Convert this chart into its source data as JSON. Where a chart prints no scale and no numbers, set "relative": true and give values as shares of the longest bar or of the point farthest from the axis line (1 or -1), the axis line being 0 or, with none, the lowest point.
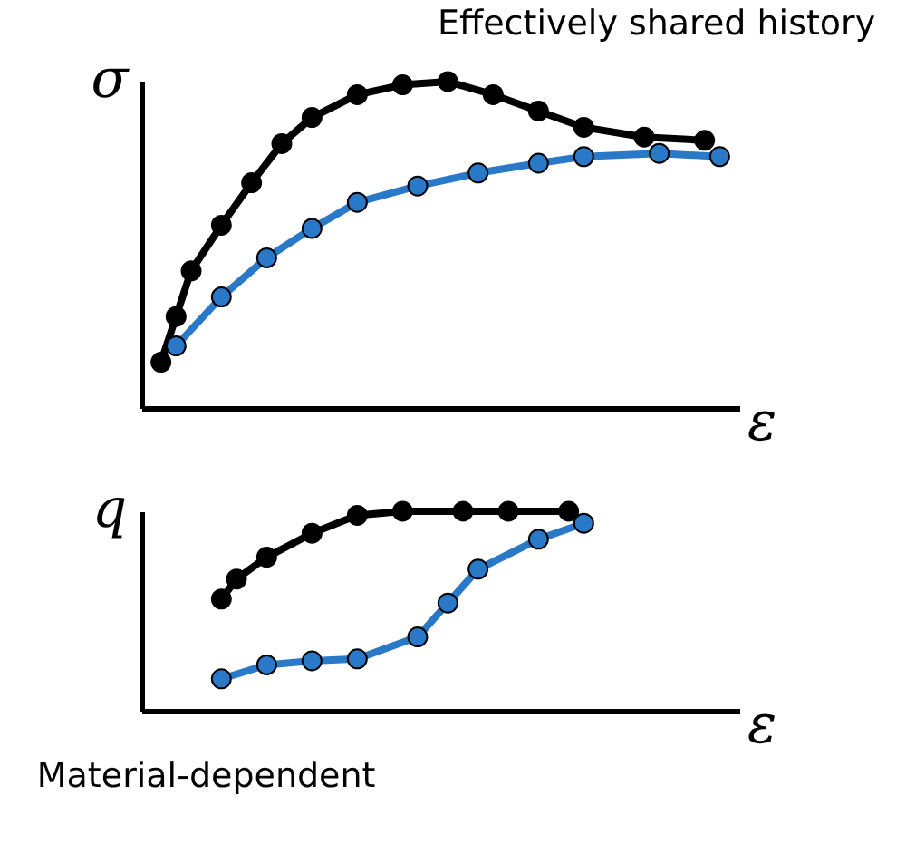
{
  "chart_data": [
    {
      "type": "line",
      "relative": true,
      "xlabel": "ε",
      "ylabel": "σ",
      "grid": false,
      "legend": false,
      "marker": "circle",
      "line_style": "solid",
      "annotations": [
        "Effectively shared history"
      ],
      "categories": [
        null,
        null,
        null,
        null,
        null,
        null,
        null,
        null,
        null,
        null,
        null,
        null,
        null,
        null,
        null,
        null,
        null,
        null,
        null,
        null,
        null,
        null,
        null,
        null,
        null,
        null,
        null,
        null,
        null,
        null,
        null,
        null,
        null,
        null,
        null,
        null,
        null,
        null,
        null,
        null
      ],
      "series": [
        {
          "color": "#000000",
          "values": [
            null,
            0.14,
            0.28,
            0.42,
            null,
            0.56,
            null,
            0.69,
            null,
            0.81,
            null,
            0.89,
            null,
            null,
            0.96,
            null,
            null,
            0.99,
            null,
            null,
            1.0,
            null,
            null,
            0.96,
            null,
            null,
            0.91,
            null,
            null,
            0.86,
            null,
            null,
            null,
            0.83,
            null,
            null,
            null,
            0.82,
            null,
            null
          ]
        },
        {
          "color": "#2a78c8",
          "values": [
            null,
            null,
            0.19,
            null,
            null,
            0.34,
            null,
            null,
            0.46,
            null,
            null,
            0.55,
            null,
            null,
            0.63,
            null,
            null,
            null,
            0.68,
            null,
            null,
            null,
            0.72,
            null,
            null,
            null,
            0.75,
            null,
            null,
            0.77,
            null,
            null,
            null,
            null,
            0.78,
            null,
            null,
            null,
            0.77,
            null
          ]
        }
      ]
    },
    {
      "type": "line",
      "relative": true,
      "xlabel": "ε",
      "ylabel": "q",
      "grid": false,
      "legend": false,
      "marker": "circle",
      "line_style": "solid",
      "annotations": [
        "Material-dependent"
      ],
      "categories": [
        null,
        null,
        null,
        null,
        null,
        null,
        null,
        null,
        null,
        null,
        null,
        null,
        null,
        null,
        null,
        null,
        null,
        null,
        null,
        null,
        null,
        null,
        null,
        null,
        null,
        null,
        null,
        null,
        null,
        null,
        null,
        null,
        null,
        null,
        null,
        null,
        null,
        null,
        null,
        null
      ],
      "series": [
        {
          "color": "#000000",
          "values": [
            null,
            null,
            null,
            null,
            null,
            0.56,
            0.66,
            null,
            0.77,
            null,
            null,
            0.89,
            null,
            null,
            0.98,
            null,
            null,
            1,
            null,
            null,
            null,
            1,
            null,
            null,
            1,
            null,
            null,
            null,
            1,
            null,
            null,
            null,
            null,
            null,
            null,
            null,
            null,
            null,
            null,
            null
          ]
        },
        {
          "color": "#2a78c8",
          "values": [
            null,
            null,
            null,
            null,
            null,
            0.16,
            null,
            null,
            0.23,
            null,
            null,
            0.25,
            null,
            null,
            0.26,
            null,
            null,
            null,
            0.37,
            null,
            0.54,
            null,
            0.71,
            null,
            null,
            null,
            0.86,
            null,
            null,
            0.94,
            null,
            null,
            null,
            null,
            null,
            null,
            null,
            null,
            null,
            null
          ]
        }
      ]
    }
  ]
}
